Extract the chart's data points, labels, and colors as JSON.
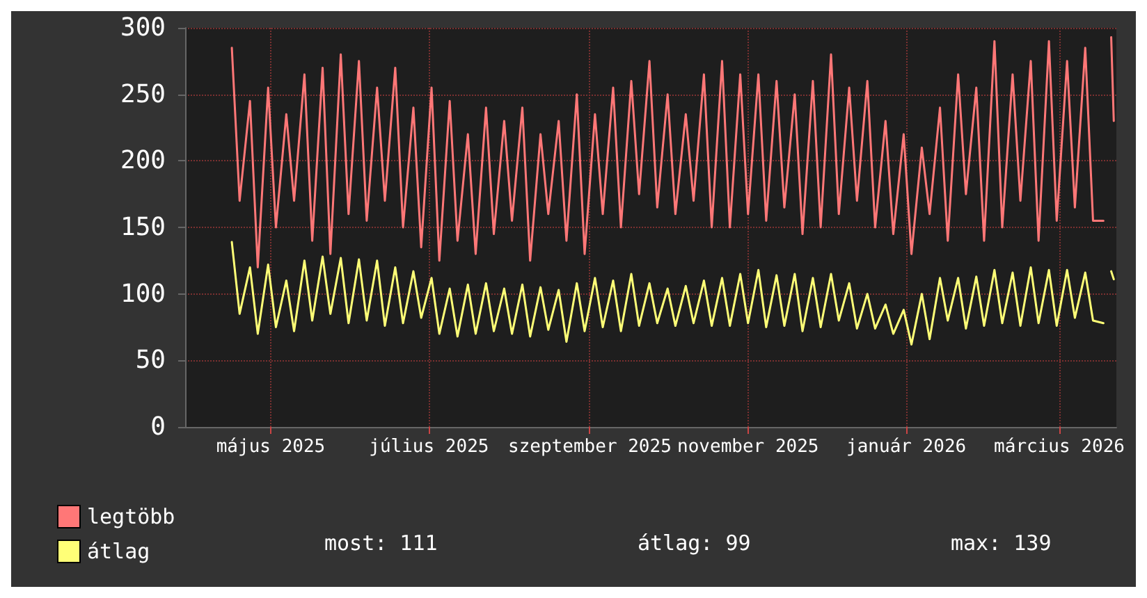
{
  "chart_data": {
    "type": "line",
    "x": [
      "2025-04-16",
      "2025-04-19",
      "2025-04-23",
      "2025-04-26",
      "2025-04-30",
      "2025-05-03",
      "2025-05-07",
      "2025-05-10",
      "2025-05-14",
      "2025-05-17",
      "2025-05-21",
      "2025-05-24",
      "2025-05-28",
      "2025-05-31",
      "2025-06-04",
      "2025-06-07",
      "2025-06-11",
      "2025-06-14",
      "2025-06-18",
      "2025-06-21",
      "2025-06-25",
      "2025-06-28",
      "2025-07-02",
      "2025-07-05",
      "2025-07-09",
      "2025-07-12",
      "2025-07-16",
      "2025-07-19",
      "2025-07-23",
      "2025-07-26",
      "2025-07-30",
      "2025-08-02",
      "2025-08-06",
      "2025-08-09",
      "2025-08-13",
      "2025-08-16",
      "2025-08-20",
      "2025-08-23",
      "2025-08-27",
      "2025-08-30",
      "2025-09-03",
      "2025-09-06",
      "2025-09-10",
      "2025-09-13",
      "2025-09-17",
      "2025-09-20",
      "2025-09-24",
      "2025-09-27",
      "2025-10-01",
      "2025-10-04",
      "2025-10-08",
      "2025-10-11",
      "2025-10-15",
      "2025-10-18",
      "2025-10-22",
      "2025-10-25",
      "2025-10-29",
      "2025-11-01",
      "2025-11-05",
      "2025-11-08",
      "2025-11-12",
      "2025-11-15",
      "2025-11-19",
      "2025-11-22",
      "2025-11-26",
      "2025-11-29",
      "2025-12-03",
      "2025-12-06",
      "2025-12-10",
      "2025-12-13",
      "2025-12-17",
      "2025-12-20",
      "2025-12-24",
      "2025-12-27",
      "2025-12-31",
      "2026-01-03",
      "2026-01-07",
      "2026-01-10",
      "2026-01-14",
      "2026-01-17",
      "2026-01-21",
      "2026-01-24",
      "2026-01-28",
      "2026-01-31",
      "2026-02-04",
      "2026-02-07",
      "2026-02-11",
      "2026-02-14",
      "2026-02-18",
      "2026-02-21",
      "2026-02-25",
      "2026-02-28",
      "2026-03-04",
      "2026-03-07",
      "2026-03-11",
      "2026-03-14",
      "2026-03-18",
      "2026-03-20",
      "2026-03-21",
      "2026-03-22"
    ],
    "series": [
      {
        "name": "legtöbb",
        "color": "#ff7777",
        "values": [
          285,
          170,
          245,
          120,
          255,
          150,
          235,
          170,
          265,
          140,
          270,
          130,
          280,
          160,
          275,
          155,
          255,
          170,
          270,
          150,
          240,
          135,
          255,
          125,
          245,
          140,
          220,
          130,
          240,
          145,
          230,
          155,
          240,
          125,
          220,
          160,
          230,
          140,
          250,
          130,
          235,
          160,
          255,
          150,
          260,
          175,
          275,
          165,
          250,
          160,
          235,
          170,
          265,
          150,
          275,
          150,
          265,
          160,
          265,
          155,
          260,
          165,
          250,
          145,
          260,
          150,
          280,
          160,
          255,
          170,
          260,
          150,
          230,
          145,
          220,
          130,
          210,
          160,
          240,
          140,
          265,
          175,
          255,
          140,
          290,
          150,
          265,
          170,
          275,
          140,
          290,
          155,
          275,
          165,
          285,
          155,
          155,
          null,
          293,
          230
        ]
      },
      {
        "name": "átlag",
        "color": "#ffff77",
        "values": [
          139,
          85,
          120,
          70,
          122,
          75,
          110,
          72,
          125,
          80,
          128,
          85,
          127,
          78,
          126,
          80,
          125,
          76,
          120,
          78,
          117,
          82,
          112,
          70,
          104,
          68,
          107,
          70,
          108,
          72,
          104,
          70,
          107,
          68,
          105,
          73,
          103,
          64,
          108,
          72,
          112,
          75,
          110,
          72,
          115,
          76,
          108,
          78,
          104,
          76,
          106,
          78,
          110,
          76,
          112,
          76,
          115,
          78,
          118,
          75,
          114,
          76,
          115,
          72,
          112,
          75,
          115,
          80,
          108,
          74,
          100,
          74,
          92,
          70,
          88,
          62,
          100,
          66,
          112,
          80,
          112,
          74,
          113,
          76,
          118,
          78,
          116,
          76,
          120,
          78,
          118,
          76,
          118,
          82,
          116,
          80,
          78,
          null,
          117,
          111
        ]
      }
    ],
    "xlim": [
      "2025-03-29",
      "2026-03-23"
    ],
    "xticks": [
      {
        "value": "2025-05-01",
        "label": "május 2025"
      },
      {
        "value": "2025-07-01",
        "label": "július 2025"
      },
      {
        "value": "2025-09-01",
        "label": "szeptember 2025"
      },
      {
        "value": "2025-11-01",
        "label": "november 2025"
      },
      {
        "value": "2026-01-01",
        "label": "január 2026"
      },
      {
        "value": "2026-03-01",
        "label": "március 2026"
      }
    ],
    "ylim": [
      0,
      300
    ],
    "yticks": [
      0,
      50,
      100,
      150,
      200,
      250,
      300
    ],
    "grid": true,
    "legend": "bottom left",
    "marker": "none",
    "line_style": "solid",
    "annotations": [
      "most: 111",
      "átlag: 99",
      "max: 139"
    ]
  }
}
